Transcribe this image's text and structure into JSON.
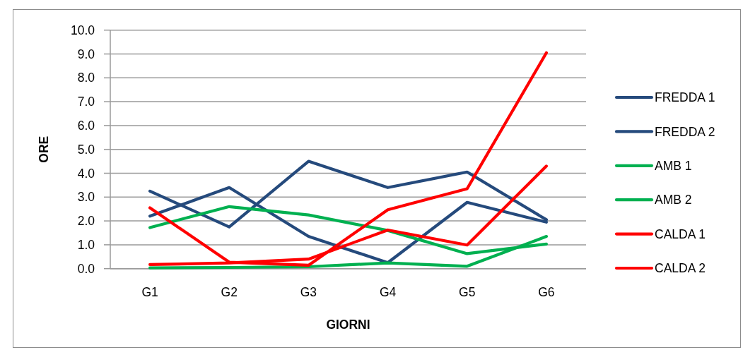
{
  "chart_data": {
    "type": "line",
    "xlabel": "GIORNI",
    "ylabel": "ORE",
    "categories": [
      "G1",
      "G2",
      "G3",
      "G4",
      "G5",
      "G6"
    ],
    "series": [
      {
        "name": "FREDDA 1",
        "color": "#254a7c",
        "values": [
          3.25,
          1.75,
          4.5,
          3.4,
          4.05,
          2.05
        ]
      },
      {
        "name": "FREDDA 2",
        "color": "#254a7c",
        "values": [
          2.2,
          3.4,
          1.35,
          0.25,
          2.78,
          1.95
        ]
      },
      {
        "name": "AMB 1",
        "color": "#00b050",
        "values": [
          1.72,
          2.6,
          2.25,
          1.6,
          0.63,
          1.03
        ]
      },
      {
        "name": "AMB 2",
        "color": "#00b050",
        "values": [
          0.03,
          0.05,
          0.08,
          0.24,
          0.1,
          1.35
        ]
      },
      {
        "name": "CALDA 1",
        "color": "#ff0000",
        "values": [
          2.55,
          0.27,
          0.14,
          2.47,
          3.35,
          9.05
        ]
      },
      {
        "name": "CALDA 2",
        "color": "#ff0000",
        "values": [
          0.17,
          0.24,
          0.4,
          1.62,
          0.99,
          4.3
        ]
      }
    ],
    "ylim": [
      0,
      10
    ],
    "yticks": [
      {
        "value": 0,
        "label": "0.0"
      },
      {
        "value": 1,
        "label": "1.0"
      },
      {
        "value": 2,
        "label": "2.0"
      },
      {
        "value": 3,
        "label": "3.0"
      },
      {
        "value": 4,
        "label": "4.0"
      },
      {
        "value": 5,
        "label": "5.0"
      },
      {
        "value": 6,
        "label": "6.0"
      },
      {
        "value": 7,
        "label": "7.0"
      },
      {
        "value": 8,
        "label": "8.0"
      },
      {
        "value": 9,
        "label": "9.0"
      },
      {
        "value": 10,
        "label": "10.0"
      }
    ],
    "grid": "y",
    "legend": "right",
    "line_style": "solid"
  }
}
